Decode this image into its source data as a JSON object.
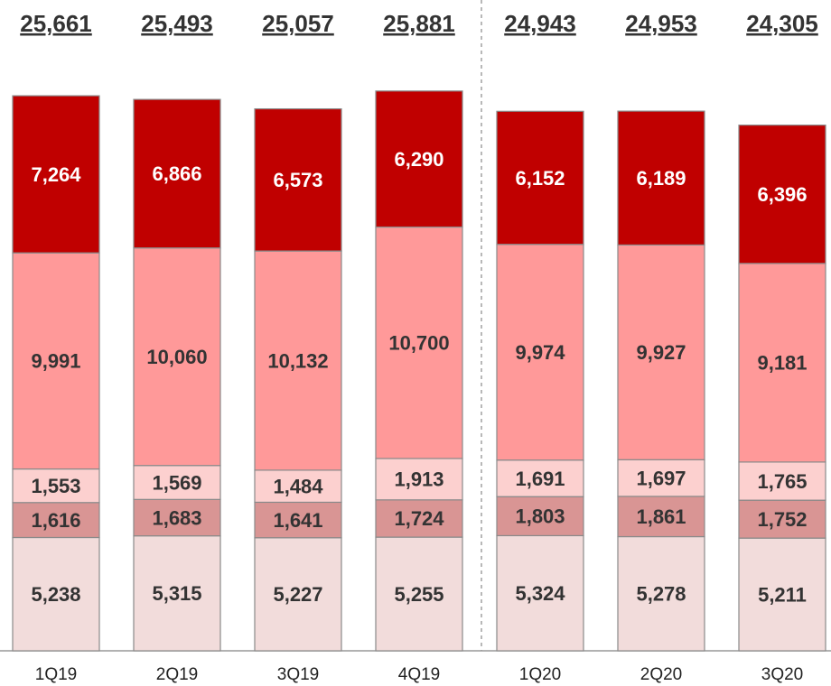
{
  "chart_data": {
    "type": "stacked_bar",
    "categories": [
      "1Q19",
      "2Q19",
      "3Q19",
      "4Q19",
      "1Q20",
      "2Q20",
      "3Q20"
    ],
    "totals": [
      25661,
      25493,
      25057,
      25881,
      24943,
      24953,
      24305
    ],
    "total_labels": [
      "25,661",
      "25,493",
      "25,057",
      "25,881",
      "24,943",
      "24,953",
      "24,305"
    ],
    "series": [
      {
        "color": "#f2dcdb",
        "values": [
          5238,
          5315,
          5227,
          5255,
          5324,
          5278,
          5211
        ],
        "value_labels": [
          "5,238",
          "5,315",
          "5,227",
          "5,255",
          "5,324",
          "5,278",
          "5,211"
        ]
      },
      {
        "color": "#d99594",
        "values": [
          1616,
          1683,
          1641,
          1724,
          1803,
          1861,
          1752
        ],
        "value_labels": [
          "1,616",
          "1,683",
          "1,641",
          "1,724",
          "1,803",
          "1,861",
          "1,752"
        ]
      },
      {
        "color": "#fcd0cf",
        "values": [
          1553,
          1569,
          1484,
          1913,
          1691,
          1697,
          1765
        ],
        "value_labels": [
          "1,553",
          "1,569",
          "1,484",
          "1,913",
          "1,691",
          "1,697",
          "1,765"
        ]
      },
      {
        "color": "#ff9999",
        "values": [
          9991,
          10060,
          10132,
          10700,
          9974,
          9927,
          9181
        ],
        "value_labels": [
          "9,991",
          "10,060",
          "10,132",
          "10,700",
          "9,974",
          "9,927",
          "9,181"
        ]
      },
      {
        "color": "#c00000",
        "values": [
          7264,
          6866,
          6573,
          6290,
          6152,
          6189,
          6396
        ],
        "value_labels": [
          "7,264",
          "6,866",
          "6,573",
          "6,290",
          "6,152",
          "6,189",
          "6,396"
        ]
      }
    ],
    "ylim": [
      0,
      26000
    ]
  }
}
